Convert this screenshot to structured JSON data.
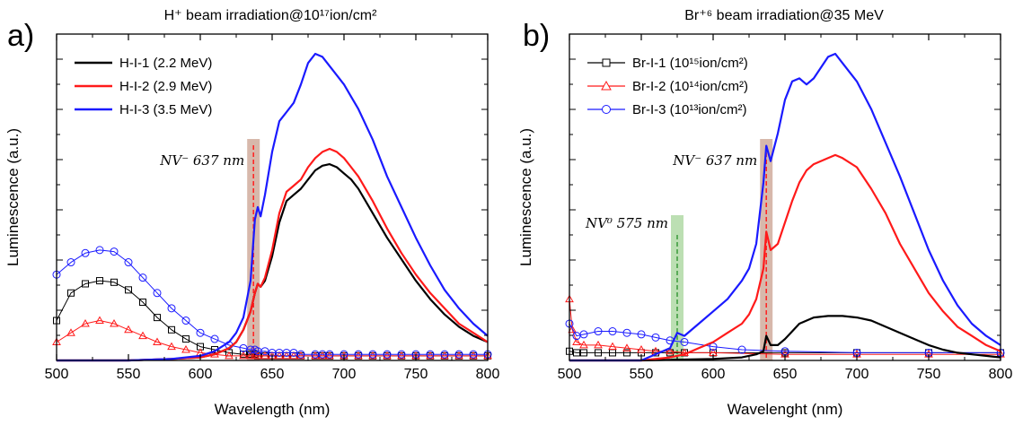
{
  "chart_data": [
    {
      "panel_letter": "a)",
      "type": "line",
      "title": "H⁺ beam irradiation@10¹⁷ion/cm²",
      "xlabel": "Wavelength (nm)",
      "ylabel": "Luminescence (a.u.)",
      "xlim": [
        500,
        800
      ],
      "xticks": [
        500,
        550,
        600,
        650,
        700,
        750,
        800
      ],
      "ylim": [
        0,
        100
      ],
      "yticks_shown": false,
      "legend_position": "top-left",
      "annotations": [
        {
          "text": "NV⁻ 637 nm",
          "x": 637,
          "band_color": "#c9a08f",
          "line_color": "#ff2020"
        }
      ],
      "series": [
        {
          "name": "H-I-1 (2.2 MeV)",
          "color": "#000000",
          "marker": "square",
          "x": [
            500,
            510,
            520,
            530,
            540,
            550,
            560,
            570,
            580,
            590,
            600,
            610,
            620,
            630,
            635,
            638,
            640,
            645,
            650,
            655,
            660,
            665,
            670,
            680,
            685,
            690,
            700,
            710,
            720,
            730,
            740,
            750,
            760,
            770,
            780,
            790,
            800
          ],
          "y": [
            13,
            22,
            25,
            26,
            25.5,
            23,
            19,
            14,
            10,
            7,
            4.5,
            3.5,
            2.5,
            2,
            2,
            2,
            1.5,
            1.5,
            1.5,
            1.5,
            1.5,
            1.5,
            1.5,
            1.5,
            1.5,
            1.5,
            1.5,
            1.5,
            1.5,
            1.5,
            1.5,
            1.5,
            1.5,
            1.5,
            1.5,
            1.5,
            1.5
          ]
        },
        {
          "name": "H-I-2 (2.9 MeV)",
          "color": "#ff1a1a",
          "marker": "triangle",
          "x": [
            500,
            510,
            520,
            530,
            540,
            550,
            560,
            570,
            580,
            590,
            600,
            610,
            620,
            630,
            635,
            638,
            640,
            645,
            650,
            655,
            660,
            665,
            670,
            680,
            685,
            690,
            700,
            710,
            720,
            730,
            740,
            750,
            760,
            770,
            780,
            790,
            800
          ],
          "y": [
            6,
            9,
            12,
            13,
            12,
            10,
            8,
            6,
            4.5,
            3.5,
            2.5,
            2,
            1.5,
            1.5,
            1.5,
            1.5,
            1.5,
            1.5,
            1.5,
            1.5,
            1.5,
            1.5,
            1.5,
            1.5,
            1.5,
            1.5,
            1.5,
            1.5,
            1.5,
            1.5,
            1.5,
            1.5,
            1.5,
            1.5,
            1.5,
            1.5,
            1.5
          ]
        },
        {
          "name": "H-I-3 (3.5 MeV)",
          "color": "#1a1aff",
          "marker": "circle",
          "x": [
            500,
            510,
            520,
            530,
            540,
            550,
            560,
            570,
            580,
            590,
            600,
            610,
            620,
            630,
            635,
            638,
            640,
            645,
            650,
            655,
            660,
            665,
            670,
            680,
            685,
            690,
            700,
            710,
            720,
            730,
            740,
            750,
            760,
            770,
            780,
            790,
            800
          ],
          "y": [
            28,
            32,
            35,
            36,
            35.5,
            32,
            27,
            22,
            17,
            13,
            9,
            7,
            5,
            4,
            3.5,
            3.5,
            3,
            3,
            2.5,
            2.5,
            2.5,
            2.5,
            2,
            2,
            2,
            2,
            2,
            2,
            2,
            2,
            2,
            2,
            2,
            2,
            2,
            2,
            2
          ]
        },
        {
          "name": "",
          "color": "#000000",
          "marker": "none",
          "x": [
            500,
            550,
            580,
            600,
            610,
            620,
            625,
            630,
            635,
            638,
            640,
            642,
            645,
            650,
            655,
            660,
            665,
            670,
            675,
            680,
            685,
            690,
            695,
            700,
            705,
            710,
            720,
            730,
            740,
            750,
            760,
            770,
            780,
            790,
            800
          ],
          "y": [
            0,
            0,
            0.5,
            1,
            2,
            4,
            6,
            10,
            16,
            22,
            25,
            24,
            26,
            34,
            45,
            52,
            54,
            56,
            59,
            62,
            63.5,
            64,
            63,
            61,
            59,
            56,
            48,
            40,
            33,
            26,
            20,
            15,
            11,
            8,
            6
          ]
        },
        {
          "name": "",
          "color": "#ff1a1a",
          "marker": "none",
          "x": [
            500,
            550,
            580,
            600,
            610,
            620,
            625,
            630,
            635,
            638,
            640,
            642,
            645,
            650,
            655,
            660,
            665,
            670,
            675,
            680,
            685,
            690,
            695,
            700,
            705,
            710,
            720,
            730,
            740,
            750,
            760,
            770,
            780,
            790,
            800
          ],
          "y": [
            0,
            0,
            0.5,
            1,
            2,
            4,
            6,
            10,
            16,
            22,
            25,
            24,
            27,
            36,
            48,
            55,
            57,
            59,
            63,
            66,
            68,
            69,
            68,
            66,
            63,
            60,
            52,
            43,
            35,
            28,
            22,
            17,
            12,
            9,
            6
          ]
        },
        {
          "name": "",
          "color": "#1a1aff",
          "marker": "none",
          "x": [
            500,
            550,
            580,
            600,
            610,
            620,
            625,
            630,
            635,
            638,
            640,
            642,
            645,
            650,
            655,
            660,
            665,
            670,
            675,
            680,
            685,
            690,
            695,
            700,
            705,
            710,
            720,
            730,
            740,
            750,
            760,
            770,
            780,
            790,
            800
          ],
          "y": [
            0,
            0,
            0.5,
            1.5,
            3,
            6,
            9,
            14,
            26,
            46,
            50,
            47,
            54,
            68,
            78,
            81,
            84,
            90,
            97,
            100,
            99,
            96,
            93,
            90,
            86,
            82,
            72,
            60,
            50,
            40,
            31,
            23,
            17,
            12,
            8
          ]
        }
      ]
    },
    {
      "panel_letter": "b)",
      "type": "line",
      "title": "Br⁺⁶ beam irradiation@35 MeV",
      "xlabel": "Wavelenght (nm)",
      "ylabel": "Luminescence (a.u.)",
      "xlim": [
        500,
        800
      ],
      "xticks": [
        500,
        550,
        600,
        650,
        700,
        750,
        800
      ],
      "ylim": [
        0,
        100
      ],
      "yticks_shown": false,
      "legend_position": "top-left",
      "annotations": [
        {
          "text": "NV⁰ 575 nm",
          "x": 575,
          "band_color": "#a5d49a",
          "line_color": "#3a9a3a"
        },
        {
          "text": "NV⁻ 637 nm",
          "x": 637,
          "band_color": "#c9a08f",
          "line_color": "#ff2020"
        }
      ],
      "series": [
        {
          "name": "Br-I-1 (10¹⁵ion/cm²)",
          "color": "#000000",
          "marker": "square",
          "x": [
            500,
            505,
            510,
            520,
            530,
            540,
            550,
            560,
            570,
            580,
            600,
            650,
            700,
            750,
            800
          ],
          "y": [
            3,
            2.5,
            2.5,
            2.5,
            2.5,
            2.5,
            2.5,
            2.5,
            2.5,
            2.5,
            2.5,
            2.5,
            2.5,
            2.5,
            2.5
          ]
        },
        {
          "name": "Br-I-2 (10¹⁴ion/cm²)",
          "color": "#ff1a1a",
          "marker": "triangle",
          "x": [
            500,
            502,
            505,
            510,
            520,
            530,
            540,
            550,
            560,
            570,
            580,
            600,
            650,
            700,
            750,
            800
          ],
          "y": [
            20,
            10,
            6,
            5,
            5,
            4.5,
            4,
            3.5,
            3,
            3,
            2.5,
            2.5,
            2,
            2,
            2,
            2
          ]
        },
        {
          "name": "Br-I-3 (10¹³ion/cm²)",
          "color": "#1a1aff",
          "marker": "circle",
          "x": [
            500,
            505,
            510,
            520,
            530,
            540,
            550,
            560,
            570,
            580,
            600,
            620,
            650,
            700,
            750,
            800
          ],
          "y": [
            12,
            8,
            8.5,
            9.5,
            9.5,
            9,
            8.5,
            7.5,
            6.5,
            6,
            4.5,
            3.5,
            3,
            2.5,
            2.5,
            2.5
          ]
        },
        {
          "name": "",
          "color": "#000000",
          "marker": "none",
          "x": [
            500,
            550,
            600,
            620,
            630,
            635,
            637,
            640,
            645,
            650,
            660,
            670,
            680,
            690,
            700,
            710,
            720,
            730,
            740,
            750,
            760,
            770,
            780,
            790,
            800
          ],
          "y": [
            0,
            0,
            0.5,
            1,
            2,
            3,
            8,
            5,
            5,
            7,
            12,
            14,
            14.5,
            14.5,
            14,
            13,
            11,
            9,
            7,
            5,
            3.5,
            2.5,
            2,
            1.5,
            1
          ]
        },
        {
          "name": "",
          "color": "#ff1a1a",
          "marker": "none",
          "x": [
            500,
            550,
            570,
            580,
            590,
            600,
            610,
            620,
            625,
            630,
            635,
            637,
            640,
            645,
            650,
            655,
            660,
            665,
            670,
            680,
            685,
            690,
            700,
            710,
            720,
            730,
            740,
            750,
            760,
            770,
            780,
            790,
            800
          ],
          "y": [
            0,
            0,
            1,
            2,
            4,
            6,
            9,
            12,
            15,
            20,
            30,
            42,
            36,
            38,
            45,
            52,
            58,
            62,
            64,
            66,
            67,
            66,
            63,
            56,
            48,
            38,
            30,
            22,
            16,
            11,
            8,
            5,
            3
          ]
        },
        {
          "name": "",
          "color": "#1a1aff",
          "marker": "none",
          "x": [
            500,
            550,
            570,
            575,
            580,
            590,
            600,
            610,
            620,
            625,
            630,
            635,
            637,
            640,
            645,
            650,
            655,
            660,
            665,
            670,
            680,
            685,
            690,
            700,
            710,
            720,
            730,
            740,
            750,
            760,
            770,
            780,
            790,
            800
          ],
          "y": [
            0,
            0,
            4,
            9,
            8,
            12,
            16,
            20,
            26,
            30,
            38,
            58,
            70,
            65,
            74,
            85,
            91,
            92,
            90,
            92,
            99,
            100,
            97,
            91,
            82,
            71,
            60,
            48,
            36,
            26,
            18,
            12,
            8,
            5
          ]
        }
      ]
    }
  ]
}
